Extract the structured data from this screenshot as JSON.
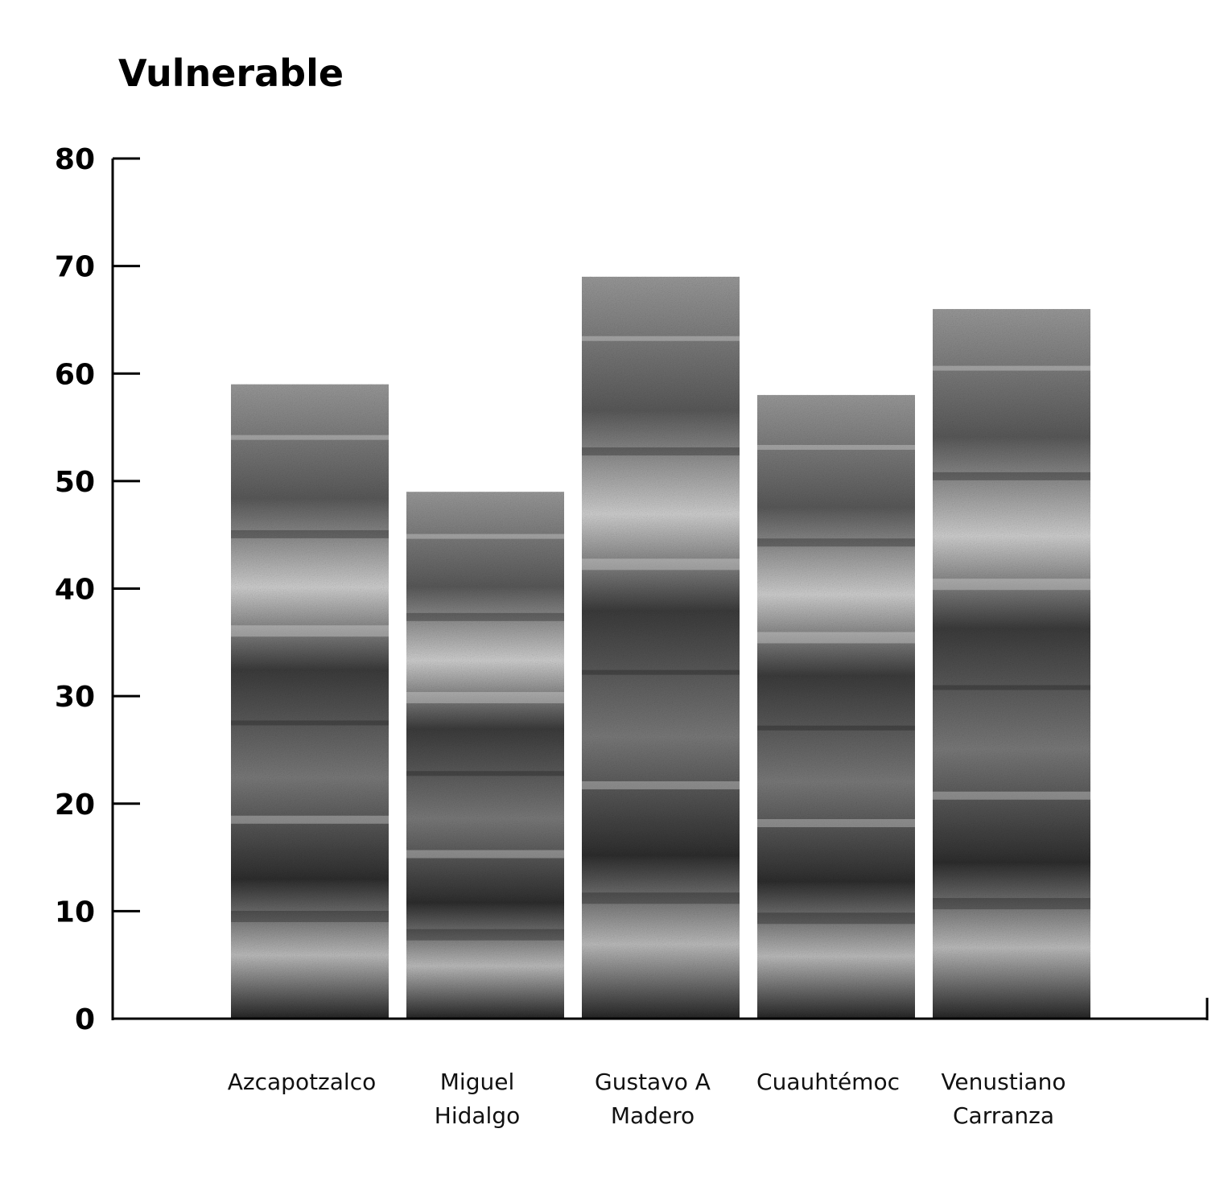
{
  "chart_data": {
    "type": "bar",
    "title": "Vulnerable",
    "xlabel": "",
    "ylabel": "",
    "ylim": [
      0,
      80
    ],
    "yticks": [
      0,
      10,
      20,
      30,
      40,
      50,
      60,
      70,
      80
    ],
    "categories": [
      "Azcapotzalco",
      "Miguel Hidalgo",
      "Gustavo A Madero",
      "Cuauhtémoc",
      "Venustiano Carranza"
    ],
    "category_lines": [
      [
        "Azcapotzalco"
      ],
      [
        "Miguel",
        "Hidalgo"
      ],
      [
        "Gustavo A",
        "Madero"
      ],
      [
        "Cuauhtémoc"
      ],
      [
        "Venustiano",
        "Carranza"
      ]
    ],
    "values": [
      59,
      49,
      69,
      58,
      66
    ],
    "grid": false,
    "bar_fill": "photographic grayscale texture",
    "colors": {
      "axis": "#000000",
      "text": "#000000",
      "bar_dark": "#2a2a2a",
      "bar_light": "#d8d8d8"
    }
  }
}
